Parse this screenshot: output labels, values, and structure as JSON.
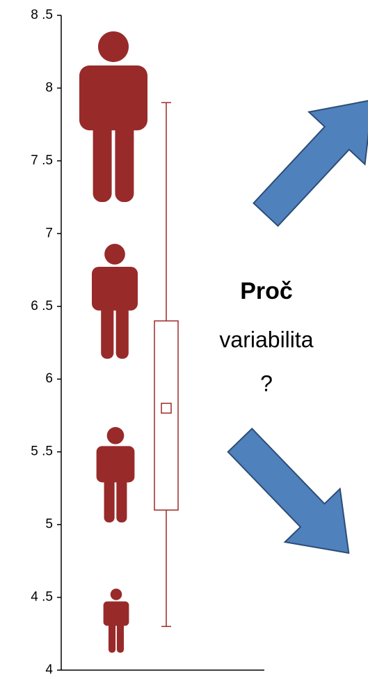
{
  "chart_data": {
    "type": "box",
    "ylim": [
      4,
      8.5
    ],
    "yticks": [
      {
        "value": 4,
        "label": "4"
      },
      {
        "value": 4.5,
        "label": "4 .5"
      },
      {
        "value": 5,
        "label": "5"
      },
      {
        "value": 5.5,
        "label": "5 .5"
      },
      {
        "value": 6,
        "label": "6"
      },
      {
        "value": 6.5,
        "label": "6 .5"
      },
      {
        "value": 7,
        "label": "7"
      },
      {
        "value": 7.5,
        "label": "7 .5"
      },
      {
        "value": 8,
        "label": "8"
      },
      {
        "value": 8.5,
        "label": "8 .5"
      }
    ],
    "whisker_low": 4.3,
    "q1": 5.1,
    "mean": 5.8,
    "q3": 6.4,
    "whisker_high": 7.9,
    "color": "#9b2a27",
    "annotation": {
      "title": "Proč",
      "line1": "variabilita",
      "line2": "?"
    }
  }
}
